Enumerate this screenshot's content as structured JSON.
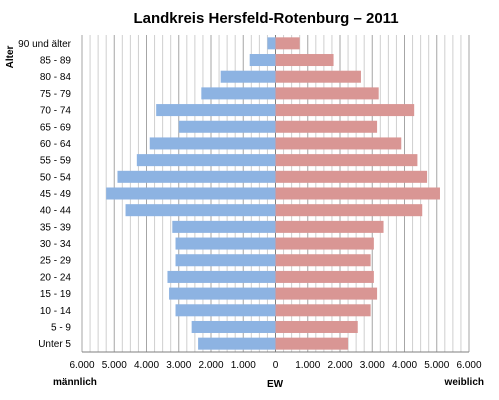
{
  "chart_data": {
    "type": "bar",
    "orientation": "horizontal-population-pyramid",
    "title": "Landkreis Hersfeld-Rotenburg – 2011",
    "ylabel": "Alter",
    "xlabel_left": "männlich",
    "xlabel_center": "EW",
    "xlabel_right": "weiblich",
    "xlim": [
      -6000,
      6000
    ],
    "xticks": [
      -6000,
      -5000,
      -4000,
      -3000,
      -2000,
      -1000,
      0,
      1000,
      2000,
      3000,
      4000,
      5000,
      6000
    ],
    "xtick_labels": [
      "6.000",
      "5.000",
      "4.000",
      "3.000",
      "2.000",
      "1.000",
      "0",
      "1.000",
      "2.000",
      "3.000",
      "4.000",
      "5.000",
      "6.000"
    ],
    "grid": true,
    "categories": [
      "90 und älter",
      "85 - 89",
      "80 - 84",
      "75 - 79",
      "70 - 74",
      "65 - 69",
      "60 - 64",
      "55 - 59",
      "50 - 54",
      "45 - 49",
      "40 - 44",
      "35 - 39",
      "30 - 34",
      "25 - 29",
      "20 - 24",
      "15 - 19",
      "10 - 14",
      "5 - 9",
      "Unter 5"
    ],
    "series": [
      {
        "name": "männlich",
        "color": "#8db3e2",
        "values": [
          250,
          800,
          1700,
          2300,
          3700,
          3000,
          3900,
          4300,
          4900,
          5250,
          4650,
          3200,
          3100,
          3100,
          3350,
          3300,
          3100,
          2600,
          2400
        ]
      },
      {
        "name": "weiblich",
        "color": "#d99694",
        "values": [
          750,
          1800,
          2650,
          3200,
          4300,
          3150,
          3900,
          4400,
          4700,
          5100,
          4550,
          3350,
          3050,
          2950,
          3050,
          3150,
          2950,
          2550,
          2250
        ]
      }
    ]
  }
}
